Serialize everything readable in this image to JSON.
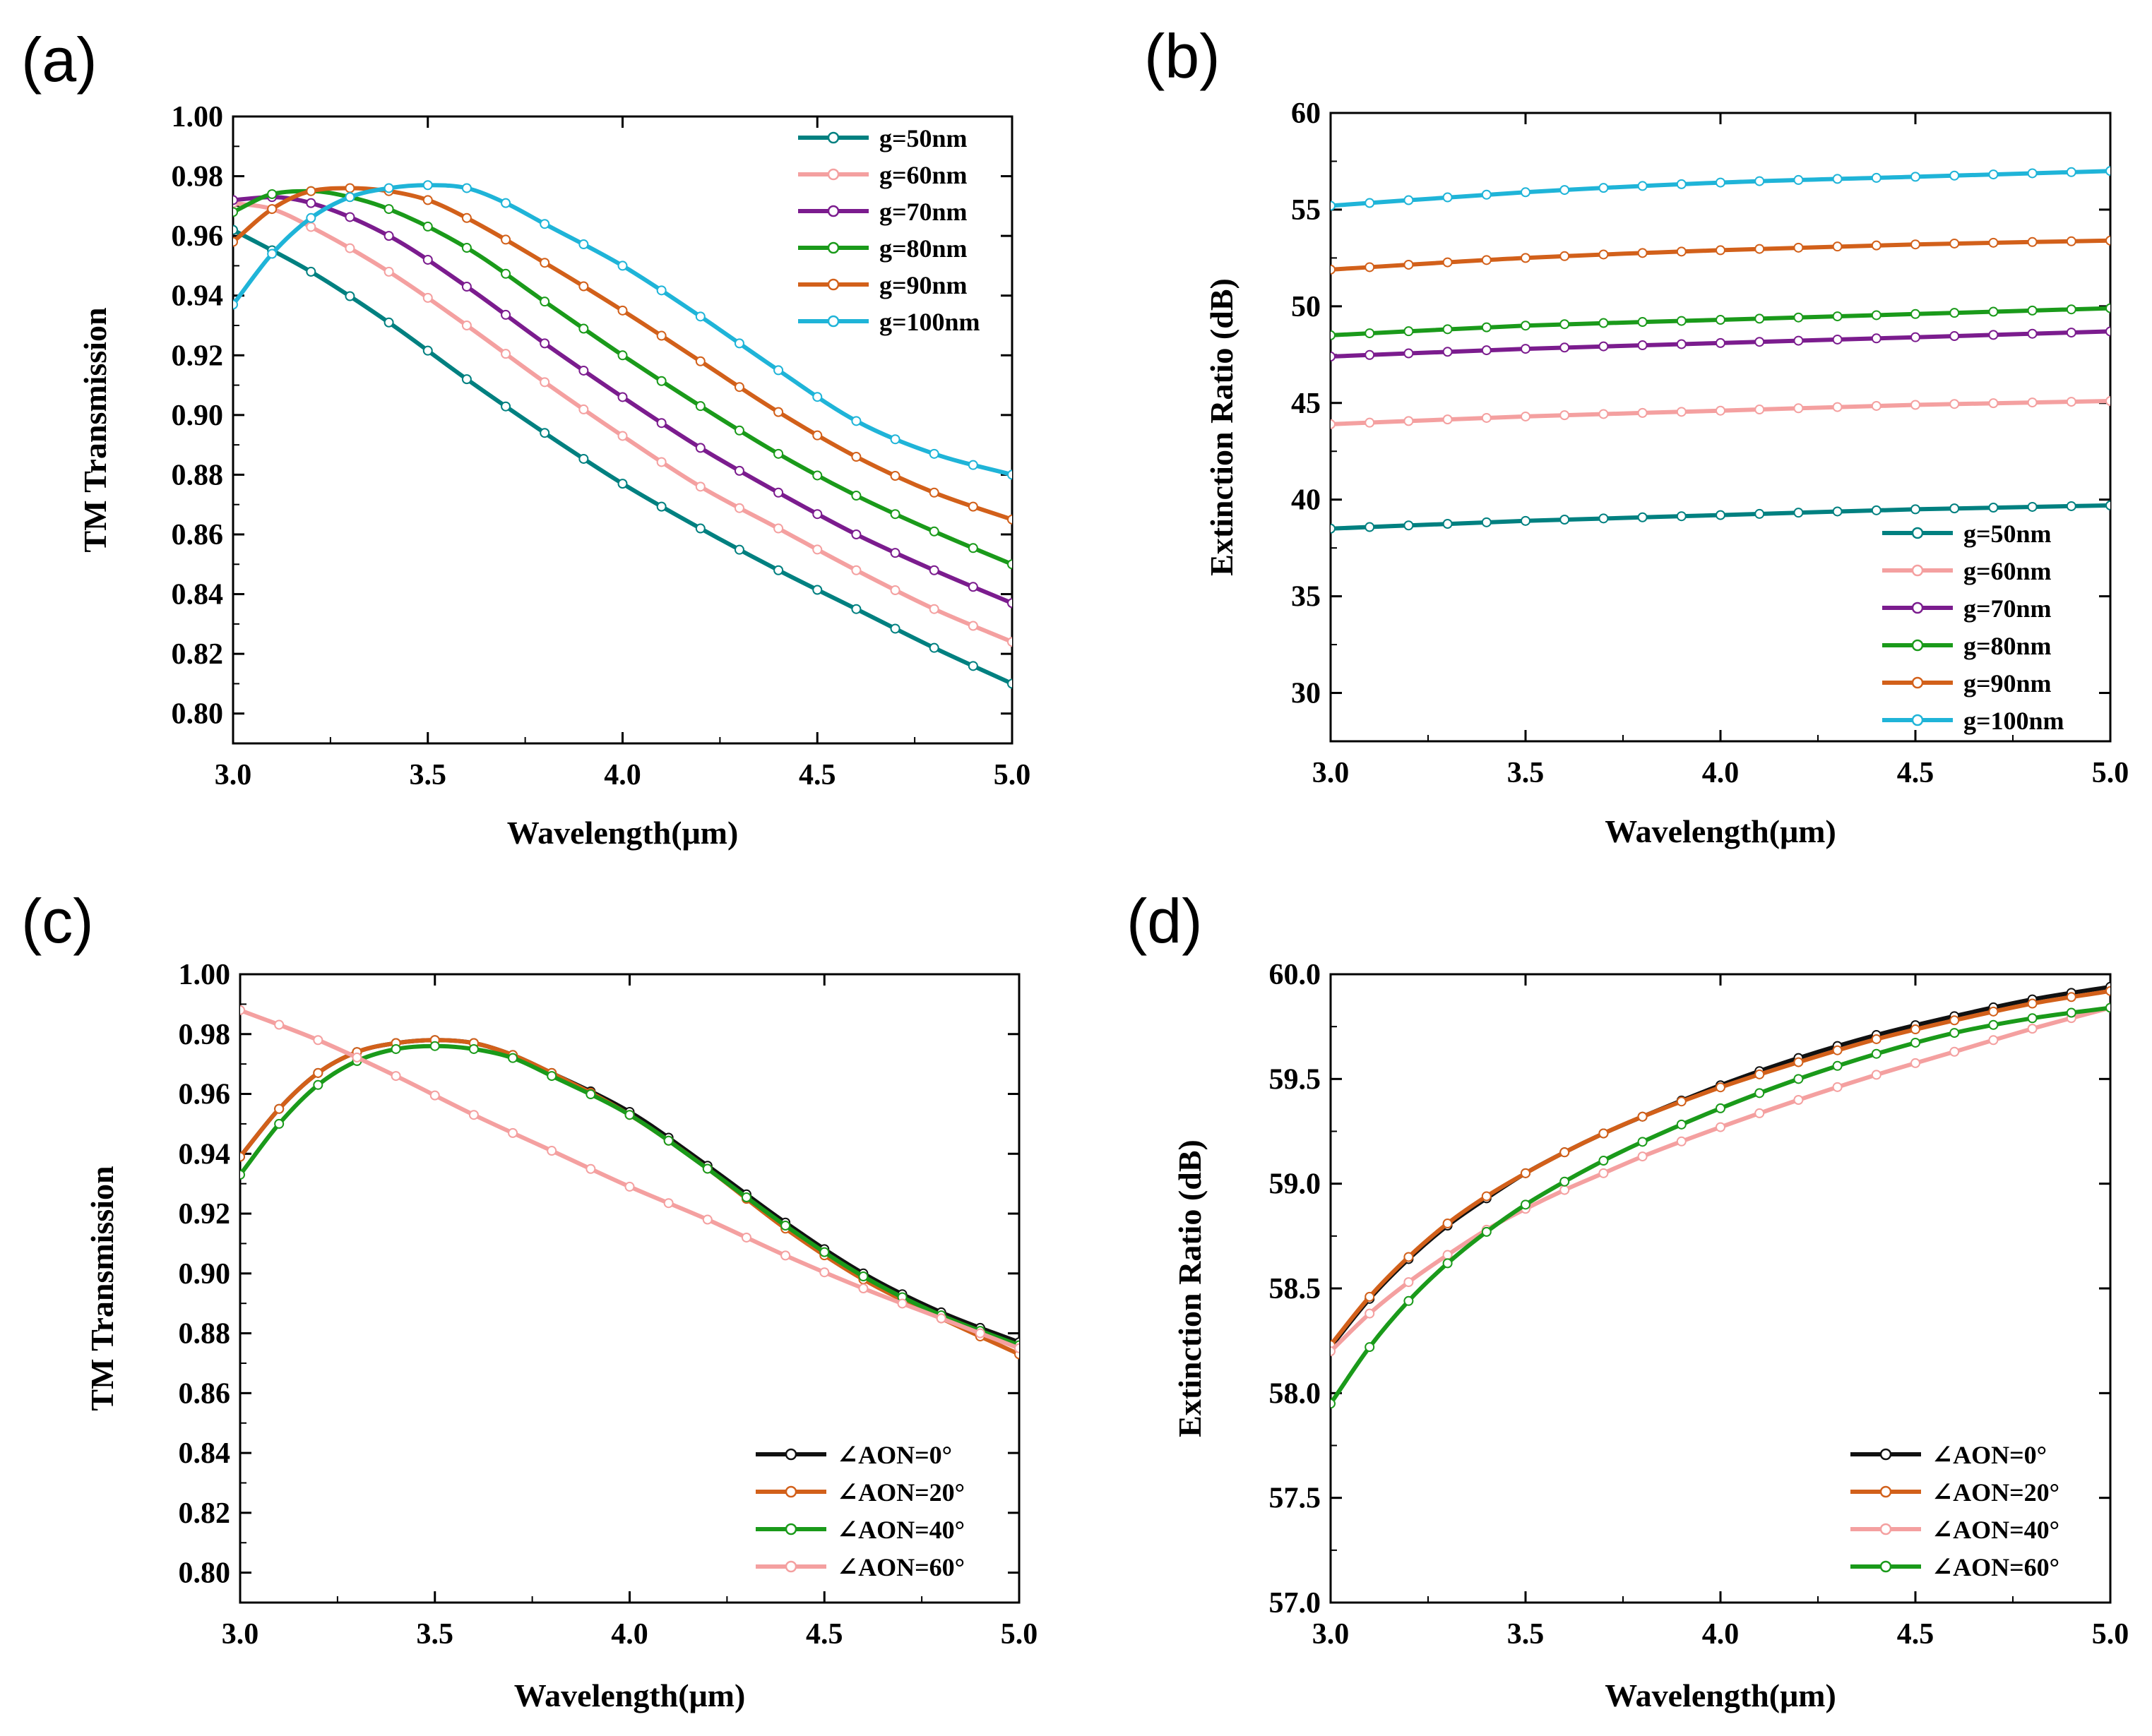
{
  "chart_data": [
    {
      "panel": "(a)",
      "type": "line",
      "xlabel": "Wavelength(μm)",
      "ylabel": "TM Transmission",
      "xlim": [
        3.0,
        5.0
      ],
      "ylim": [
        0.79,
        1.0
      ],
      "xticks": [
        "3.0",
        "3.5",
        "4.0",
        "4.5",
        "5.0"
      ],
      "yticks": [
        "0.80",
        "0.82",
        "0.84",
        "0.86",
        "0.88",
        "0.90",
        "0.92",
        "0.94",
        "0.96",
        "0.98",
        "1.00"
      ],
      "legend_position": "top-right",
      "grid": false,
      "series": [
        {
          "name": "g=50nm",
          "color": "#008080",
          "x": [
            3.0,
            3.2,
            3.4,
            3.6,
            3.8,
            4.0,
            4.2,
            4.4,
            4.6,
            4.8,
            5.0
          ],
          "y": [
            0.962,
            0.948,
            0.931,
            0.912,
            0.894,
            0.877,
            0.862,
            0.848,
            0.835,
            0.822,
            0.81
          ]
        },
        {
          "name": "g=60nm",
          "color": "#F4A0A0",
          "x": [
            3.0,
            3.1,
            3.2,
            3.4,
            3.6,
            3.8,
            4.0,
            4.2,
            4.4,
            4.6,
            4.8,
            5.0
          ],
          "y": [
            0.971,
            0.969,
            0.963,
            0.948,
            0.93,
            0.911,
            0.893,
            0.876,
            0.862,
            0.848,
            0.835,
            0.824
          ]
        },
        {
          "name": "g=70nm",
          "color": "#7B1C8E",
          "x": [
            3.0,
            3.1,
            3.2,
            3.4,
            3.6,
            3.8,
            4.0,
            4.2,
            4.4,
            4.6,
            4.8,
            5.0
          ],
          "y": [
            0.972,
            0.973,
            0.971,
            0.96,
            0.943,
            0.924,
            0.906,
            0.889,
            0.874,
            0.86,
            0.848,
            0.837
          ]
        },
        {
          "name": "g=80nm",
          "color": "#1A9A1A",
          "x": [
            3.0,
            3.1,
            3.2,
            3.3,
            3.4,
            3.6,
            3.8,
            4.0,
            4.2,
            4.4,
            4.6,
            4.8,
            5.0
          ],
          "y": [
            0.968,
            0.974,
            0.975,
            0.973,
            0.969,
            0.956,
            0.938,
            0.92,
            0.903,
            0.887,
            0.873,
            0.861,
            0.85
          ]
        },
        {
          "name": "g=90nm",
          "color": "#D2601A",
          "x": [
            3.0,
            3.1,
            3.2,
            3.3,
            3.4,
            3.5,
            3.6,
            3.8,
            4.0,
            4.2,
            4.4,
            4.6,
            4.8,
            5.0
          ],
          "y": [
            0.958,
            0.969,
            0.975,
            0.976,
            0.975,
            0.972,
            0.966,
            0.951,
            0.935,
            0.918,
            0.901,
            0.886,
            0.874,
            0.865
          ]
        },
        {
          "name": "g=100nm",
          "color": "#1FB4D8",
          "x": [
            3.0,
            3.1,
            3.2,
            3.3,
            3.4,
            3.5,
            3.6,
            3.7,
            3.8,
            4.0,
            4.2,
            4.4,
            4.6,
            4.8,
            5.0
          ],
          "y": [
            0.937,
            0.954,
            0.966,
            0.973,
            0.976,
            0.977,
            0.976,
            0.971,
            0.964,
            0.95,
            0.933,
            0.915,
            0.898,
            0.887,
            0.88
          ]
        }
      ]
    },
    {
      "panel": "(b)",
      "type": "line",
      "xlabel": "Wavelength(μm)",
      "ylabel": "Extinction Ratio (dB)",
      "xlim": [
        3.0,
        5.0
      ],
      "ylim": [
        27.5,
        60.0
      ],
      "xticks": [
        "3.0",
        "3.5",
        "4.0",
        "4.5",
        "5.0"
      ],
      "yticks": [
        "30",
        "35",
        "40",
        "45",
        "50",
        "55",
        "60"
      ],
      "legend_position": "bottom-right",
      "grid": false,
      "series": [
        {
          "name": "g=50nm",
          "color": "#008080",
          "x": [
            3.0,
            3.5,
            4.0,
            4.5,
            5.0
          ],
          "y": [
            38.5,
            38.9,
            39.2,
            39.5,
            39.7
          ]
        },
        {
          "name": "g=60nm",
          "color": "#F4A0A0",
          "x": [
            3.0,
            3.5,
            4.0,
            4.5,
            5.0
          ],
          "y": [
            43.9,
            44.3,
            44.6,
            44.9,
            45.1
          ]
        },
        {
          "name": "g=70nm",
          "color": "#7B1C8E",
          "x": [
            3.0,
            3.5,
            4.0,
            4.5,
            5.0
          ],
          "y": [
            47.4,
            47.8,
            48.1,
            48.4,
            48.7
          ]
        },
        {
          "name": "g=80nm",
          "color": "#1A9A1A",
          "x": [
            3.0,
            3.5,
            4.0,
            4.5,
            5.0
          ],
          "y": [
            48.5,
            49.0,
            49.3,
            49.6,
            49.9
          ]
        },
        {
          "name": "g=90nm",
          "color": "#D2601A",
          "x": [
            3.0,
            3.5,
            4.0,
            4.5,
            5.0
          ],
          "y": [
            51.9,
            52.5,
            52.9,
            53.2,
            53.4
          ]
        },
        {
          "name": "g=100nm",
          "color": "#1FB4D8",
          "x": [
            3.0,
            3.5,
            4.0,
            4.5,
            5.0
          ],
          "y": [
            55.2,
            55.9,
            56.4,
            56.7,
            57.0
          ]
        }
      ]
    },
    {
      "panel": "(c)",
      "type": "line",
      "xlabel": "Wavelength(μm)",
      "ylabel": "TM Transmission",
      "xlim": [
        3.0,
        5.0
      ],
      "ylim": [
        0.79,
        1.0
      ],
      "xticks": [
        "3.0",
        "3.5",
        "4.0",
        "4.5",
        "5.0"
      ],
      "yticks": [
        "0.80",
        "0.82",
        "0.84",
        "0.86",
        "0.88",
        "0.90",
        "0.92",
        "0.94",
        "0.96",
        "0.98",
        "1.00"
      ],
      "legend_position": "bottom-right",
      "grid": false,
      "series": [
        {
          "name": "∠AON=0°",
          "color": "#111111",
          "x": [
            3.0,
            3.1,
            3.2,
            3.3,
            3.4,
            3.5,
            3.6,
            3.7,
            3.8,
            4.0,
            4.2,
            4.4,
            4.6,
            4.8,
            5.0
          ],
          "y": [
            0.939,
            0.955,
            0.967,
            0.974,
            0.977,
            0.978,
            0.977,
            0.973,
            0.967,
            0.954,
            0.936,
            0.917,
            0.9,
            0.887,
            0.877
          ]
        },
        {
          "name": "∠AON=20°",
          "color": "#D2601A",
          "x": [
            3.0,
            3.1,
            3.2,
            3.3,
            3.4,
            3.5,
            3.6,
            3.7,
            3.8,
            4.0,
            4.2,
            4.4,
            4.6,
            4.8,
            5.0
          ],
          "y": [
            0.939,
            0.955,
            0.967,
            0.974,
            0.977,
            0.978,
            0.977,
            0.973,
            0.967,
            0.953,
            0.935,
            0.915,
            0.898,
            0.885,
            0.873
          ]
        },
        {
          "name": "∠AON=40°",
          "color": "#1A9A1A",
          "x": [
            3.0,
            3.1,
            3.2,
            3.3,
            3.4,
            3.5,
            3.6,
            3.7,
            3.8,
            4.0,
            4.2,
            4.4,
            4.6,
            4.8,
            5.0
          ],
          "y": [
            0.933,
            0.95,
            0.963,
            0.971,
            0.975,
            0.976,
            0.975,
            0.972,
            0.966,
            0.953,
            0.935,
            0.916,
            0.899,
            0.886,
            0.876
          ]
        },
        {
          "name": "∠AON=60°",
          "color": "#F4A0A0",
          "x": [
            3.0,
            3.2,
            3.4,
            3.6,
            3.8,
            4.0,
            4.2,
            4.4,
            4.6,
            4.8,
            5.0
          ],
          "y": [
            0.988,
            0.978,
            0.966,
            0.953,
            0.941,
            0.929,
            0.918,
            0.906,
            0.895,
            0.885,
            0.875
          ]
        }
      ]
    },
    {
      "panel": "(d)",
      "type": "line",
      "xlabel": "Wavelength(μm)",
      "ylabel": "Extinction Ratio (dB)",
      "xlim": [
        3.0,
        5.0
      ],
      "ylim": [
        57.0,
        60.0
      ],
      "xticks": [
        "3.0",
        "3.5",
        "4.0",
        "4.5",
        "5.0"
      ],
      "yticks": [
        "57.0",
        "57.5",
        "58.0",
        "58.5",
        "59.0",
        "59.5",
        "60.0"
      ],
      "legend_position": "bottom-right",
      "grid": false,
      "series": [
        {
          "name": "∠AON=0°",
          "color": "#111111",
          "x": [
            3.0,
            3.1,
            3.2,
            3.3,
            3.4,
            3.5,
            3.6,
            3.7,
            3.8,
            4.0,
            4.2,
            4.4,
            4.6,
            4.8,
            5.0
          ],
          "y": [
            58.22,
            58.45,
            58.64,
            58.8,
            58.93,
            59.05,
            59.15,
            59.24,
            59.32,
            59.47,
            59.6,
            59.71,
            59.8,
            59.88,
            59.94
          ]
        },
        {
          "name": "∠AON=20°",
          "color": "#D2601A",
          "x": [
            3.0,
            3.1,
            3.2,
            3.3,
            3.4,
            3.5,
            3.6,
            3.7,
            3.8,
            4.0,
            4.2,
            4.4,
            4.6,
            4.8,
            5.0
          ],
          "y": [
            58.23,
            58.46,
            58.65,
            58.81,
            58.94,
            59.05,
            59.15,
            59.24,
            59.32,
            59.46,
            59.58,
            59.69,
            59.78,
            59.86,
            59.92
          ]
        },
        {
          "name": "∠AON=40°",
          "color": "#F4A0A0",
          "x": [
            3.0,
            3.1,
            3.2,
            3.3,
            3.4,
            3.5,
            3.6,
            3.7,
            3.8,
            4.0,
            4.2,
            4.4,
            4.6,
            4.8,
            5.0
          ],
          "y": [
            58.2,
            58.38,
            58.53,
            58.66,
            58.78,
            58.88,
            58.97,
            59.05,
            59.13,
            59.27,
            59.4,
            59.52,
            59.63,
            59.74,
            59.84
          ]
        },
        {
          "name": "∠AON=60°",
          "color": "#1A9A1A",
          "x": [
            3.0,
            3.1,
            3.2,
            3.3,
            3.4,
            3.5,
            3.6,
            3.7,
            3.8,
            4.0,
            4.2,
            4.4,
            4.6,
            4.8,
            5.0
          ],
          "y": [
            57.95,
            58.22,
            58.44,
            58.62,
            58.77,
            58.9,
            59.01,
            59.11,
            59.2,
            59.36,
            59.5,
            59.62,
            59.72,
            59.79,
            59.84
          ]
        }
      ]
    }
  ]
}
